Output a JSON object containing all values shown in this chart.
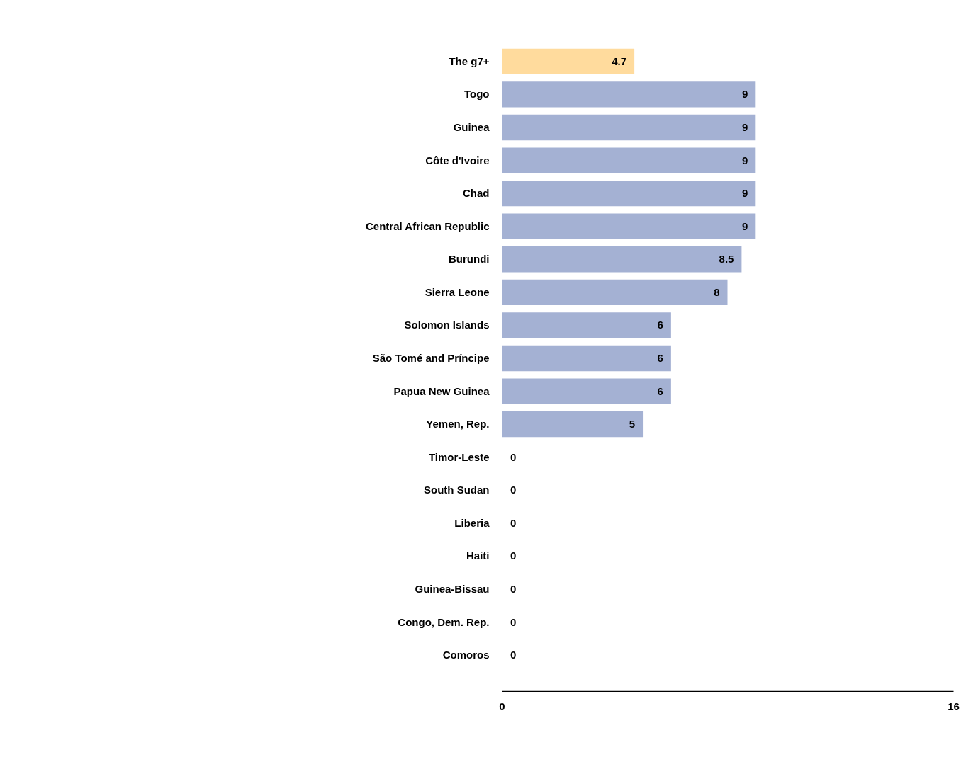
{
  "chart_data": {
    "type": "bar",
    "orientation": "horizontal",
    "categories": [
      "The g7+",
      "Togo",
      "Guinea",
      "Côte d'Ivoire",
      "Chad",
      "Central African Republic",
      "Burundi",
      "Sierra Leone",
      "Solomon Islands",
      "São Tomé and Príncipe",
      "Papua New Guinea",
      "Yemen, Rep.",
      "Timor-Leste",
      "South Sudan",
      "Liberia",
      "Haiti",
      "Guinea-Bissau",
      "Congo, Dem. Rep.",
      "Comoros"
    ],
    "values": [
      4.7,
      9,
      9,
      9,
      9,
      9,
      8.5,
      8,
      6,
      6,
      6,
      5,
      0,
      0,
      0,
      0,
      0,
      0,
      0
    ],
    "colors": [
      "#ffdb9d",
      "#a4b1d3",
      "#a4b1d3",
      "#a4b1d3",
      "#a4b1d3",
      "#a4b1d3",
      "#a4b1d3",
      "#a4b1d3",
      "#a4b1d3",
      "#a4b1d3",
      "#a4b1d3",
      "#a4b1d3",
      "#a4b1d3",
      "#a4b1d3",
      "#a4b1d3",
      "#a4b1d3",
      "#a4b1d3",
      "#a4b1d3",
      "#a4b1d3"
    ],
    "xlim": [
      0,
      16
    ],
    "xticks": [
      0,
      16
    ],
    "data_labels": true,
    "grid": false
  }
}
